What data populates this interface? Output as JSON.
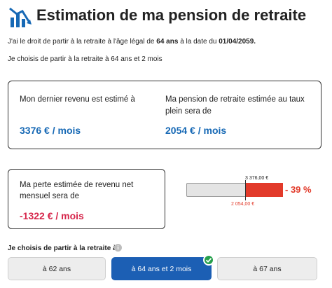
{
  "header": {
    "title": "Estimation de ma pension de retraite",
    "icon": "bar-chart-icon",
    "accent": "#1769b5"
  },
  "intro": {
    "prefix": "J'ai le droit de partir à la retraite à l'âge légal de",
    "age": "64 ans",
    "middle": "à la date du",
    "date": "01/04/2059."
  },
  "choice_line": "Je choisis de partir à la retraite à 64 ans et 2 mois",
  "summary": {
    "income_label": "Mon dernier revenu est estimé à",
    "income_value": "3376 € / mois",
    "pension_label": "Ma pension de retraite estimée au taux plein sera de",
    "pension_value": "2054 € / mois"
  },
  "loss": {
    "label": "Ma perte estimée de revenu net mensuel sera de",
    "value": "-1322 € / mois",
    "color": "#d6264b"
  },
  "comparison_bar": {
    "top_label": "3 376,00 €",
    "bottom_label": "2 054,00 €",
    "percent_label": "- 39 %",
    "retained_fraction": 0.61,
    "loss_color": "#e23a2a"
  },
  "options": {
    "title": "Je choisis de partir à la retraite à",
    "info_icon": "info-icon",
    "items": [
      {
        "label": "à 62 ans",
        "selected": false
      },
      {
        "label": "à 64 ans et 2 mois",
        "selected": true
      },
      {
        "label": "à 67 ans",
        "selected": false
      }
    ],
    "selected_color": "#1c5fb4",
    "check_color": "#27a04c"
  }
}
